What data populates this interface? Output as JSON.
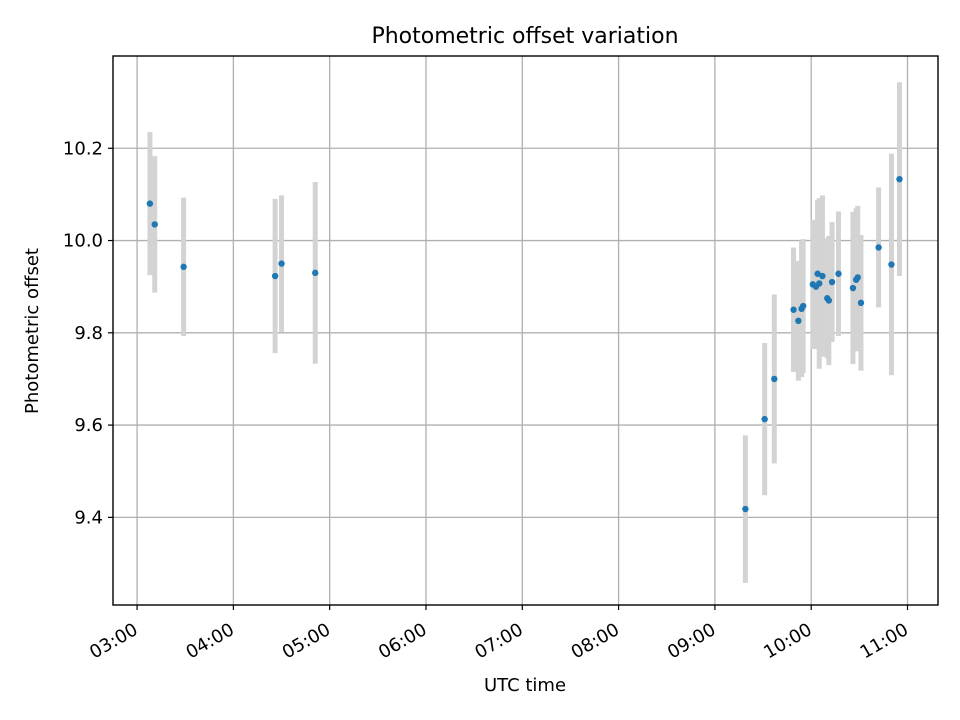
{
  "chart_data": {
    "type": "scatter",
    "title": "Photometric offset variation",
    "xlabel": "UTC time",
    "ylabel": "Photometric offset",
    "x_ticks": [
      "03:00",
      "04:00",
      "05:00",
      "06:00",
      "07:00",
      "08:00",
      "09:00",
      "10:00",
      "11:00"
    ],
    "y_ticks": [
      "9.4",
      "9.6",
      "9.8",
      "10.0",
      "10.2"
    ],
    "xlim": [
      "02:45",
      "11:19"
    ],
    "ylim": [
      9.21,
      10.4
    ],
    "grid": true,
    "series": [
      {
        "marker_color": "#1f77b4",
        "errorbar_color": "#d3d3d3",
        "points": [
          {
            "x": "03:08",
            "y": 10.08,
            "err": 0.155
          },
          {
            "x": "03:11",
            "y": 10.035,
            "err": 0.148
          },
          {
            "x": "03:29",
            "y": 9.943,
            "err": 0.15
          },
          {
            "x": "04:26",
            "y": 9.923,
            "err": 0.167
          },
          {
            "x": "04:30",
            "y": 9.95,
            "err": 0.148
          },
          {
            "x": "04:51",
            "y": 9.93,
            "err": 0.197
          },
          {
            "x": "09:19",
            "y": 9.418,
            "err": 0.16
          },
          {
            "x": "09:31",
            "y": 9.613,
            "err": 0.165
          },
          {
            "x": "09:37",
            "y": 9.7,
            "err": 0.183
          },
          {
            "x": "09:49",
            "y": 9.85,
            "err": 0.135
          },
          {
            "x": "09:52",
            "y": 9.826,
            "err": 0.13
          },
          {
            "x": "09:54",
            "y": 9.852,
            "err": 0.148
          },
          {
            "x": "09:55",
            "y": 9.858,
            "err": 0.145
          },
          {
            "x": "10:01",
            "y": 9.905,
            "err": 0.14
          },
          {
            "x": "10:03",
            "y": 9.9,
            "err": 0.135
          },
          {
            "x": "10:04",
            "y": 9.928,
            "err": 0.16
          },
          {
            "x": "10:05",
            "y": 9.907,
            "err": 0.185
          },
          {
            "x": "10:07",
            "y": 9.923,
            "err": 0.175
          },
          {
            "x": "10:10",
            "y": 9.875,
            "err": 0.13
          },
          {
            "x": "10:11",
            "y": 9.87,
            "err": 0.14
          },
          {
            "x": "10:13",
            "y": 9.91,
            "err": 0.13
          },
          {
            "x": "10:17",
            "y": 9.928,
            "err": 0.135
          },
          {
            "x": "10:26",
            "y": 9.897,
            "err": 0.165
          },
          {
            "x": "10:28",
            "y": 9.915,
            "err": 0.155
          },
          {
            "x": "10:29",
            "y": 9.92,
            "err": 0.155
          },
          {
            "x": "10:31",
            "y": 9.865,
            "err": 0.147
          },
          {
            "x": "10:42",
            "y": 9.985,
            "err": 0.13
          },
          {
            "x": "10:50",
            "y": 9.948,
            "err": 0.24
          },
          {
            "x": "10:55",
            "y": 10.133,
            "err": 0.21
          }
        ]
      }
    ]
  }
}
